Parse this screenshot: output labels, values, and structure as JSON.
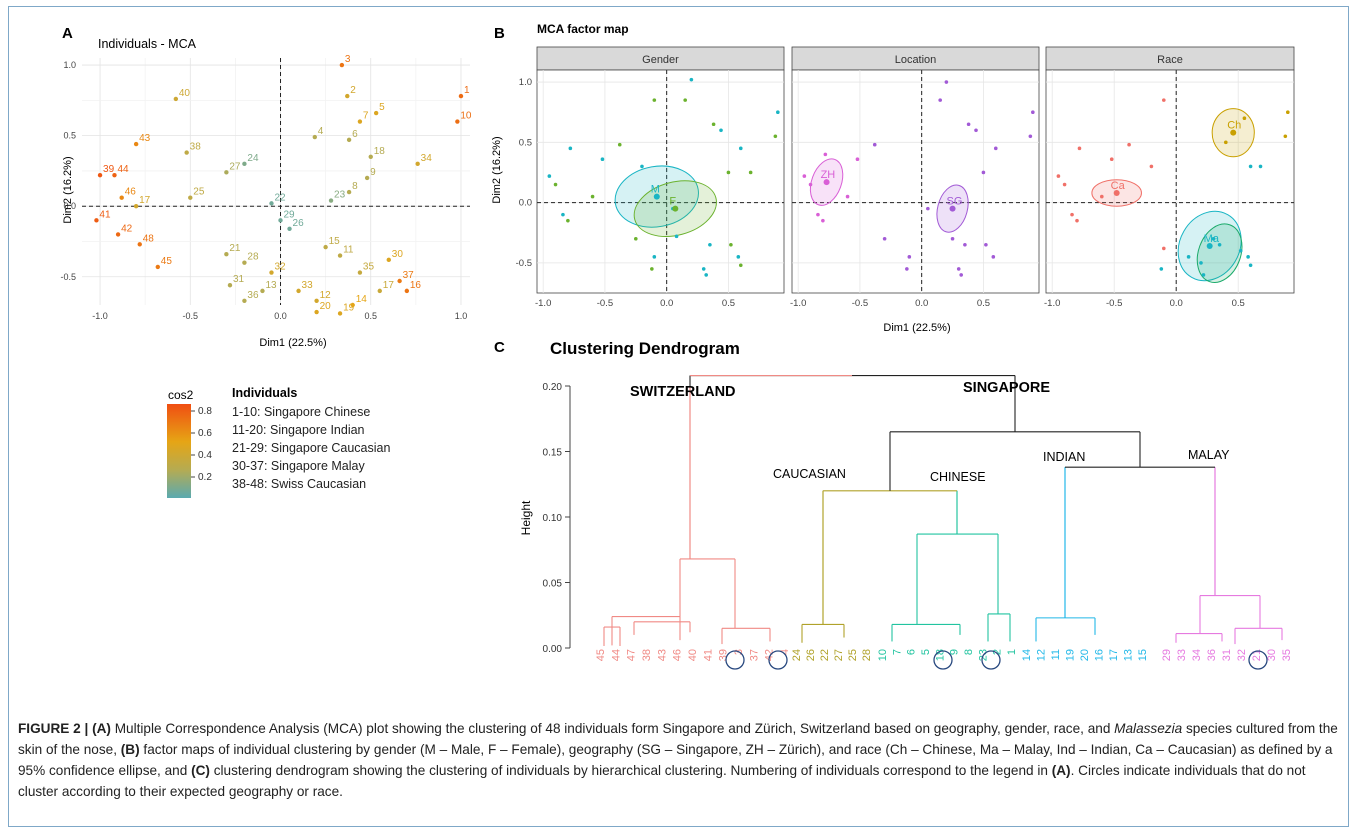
{
  "panelA": {
    "letter": "A",
    "title": "Individuals - MCA",
    "xlabel": "Dim1 (22.5%)",
    "ylabel": "Dim2 (16.2%)",
    "xticks": [
      -1.0,
      -0.5,
      0.0,
      0.5,
      1.0
    ],
    "xtick_labels": [
      "-1.0",
      "-0.5",
      "0.0",
      "0.5",
      "1.0"
    ],
    "yticks": [
      -0.5,
      0.0,
      0.5,
      1.0
    ],
    "ytick_labels": [
      "-0.5",
      "0.0",
      "0.5",
      "1.0"
    ],
    "gradient_title": "cos2",
    "gradient_ticks": [
      "0.8",
      "0.6",
      "0.4",
      "0.2"
    ],
    "legend_title": "Individuals",
    "legend_items": [
      "1-10: Singapore Chinese",
      "11-20: Singapore Indian",
      "21-29: Singapore Caucasian",
      "30-37: Singapore Malay",
      "38-48: Swiss Caucasian"
    ]
  },
  "panelB": {
    "letter": "B",
    "title": "MCA factor map",
    "facets": [
      "Gender",
      "Location",
      "Race"
    ],
    "xlabel": "Dim1 (22.5%)",
    "ylabel": "Dim2 (16.2%)",
    "xtick_labels": [
      "-1.0",
      "-0.5",
      "0.0",
      "0.5"
    ],
    "ytick_labels": [
      "1.0",
      "0.5",
      "0.0",
      "-0.5"
    ],
    "group_labels": {
      "gender": [
        "M",
        "F"
      ],
      "location": [
        "ZH",
        "SG"
      ],
      "race": [
        "Ch",
        "Ca",
        "Ma"
      ]
    }
  },
  "panelC": {
    "letter": "C",
    "title": "Clustering Dendrogram",
    "ylabel": "Height",
    "ytick_labels": [
      "0.20",
      "0.15",
      "0.10",
      "0.05",
      "0.00"
    ],
    "group_labels": [
      "SWITZERLAND",
      "SINGAPORE",
      "CAUCASIAN",
      "CHINESE",
      "INDIAN",
      "MALAY"
    ],
    "leaves": [
      {
        "group": "red",
        "labels": [
          "45",
          "44",
          "47",
          "38",
          "43",
          "46",
          "40",
          "41",
          "39",
          "3",
          "37",
          "42",
          "4"
        ]
      },
      {
        "group": "olive",
        "labels": [
          "24",
          "26",
          "22",
          "27",
          "25",
          "28"
        ]
      },
      {
        "group": "green",
        "labels": [
          "10",
          "7",
          "6",
          "5",
          "18",
          "9",
          "8",
          "23",
          "2",
          "1"
        ]
      },
      {
        "group": "blue",
        "labels": [
          "14",
          "12",
          "11",
          "19",
          "20",
          "16",
          "17",
          "13",
          "15"
        ]
      },
      {
        "group": "pink",
        "labels": [
          "29",
          "33",
          "34",
          "36",
          "31",
          "32",
          "21",
          "30",
          "35"
        ]
      }
    ]
  },
  "chart_data": [
    {
      "type": "scatter",
      "title": "Individuals - MCA",
      "xlabel": "Dim1 (22.5%)",
      "ylabel": "Dim2 (16.2%)",
      "xlim": [
        -1.1,
        1.05
      ],
      "ylim": [
        -0.7,
        1.05
      ],
      "points": [
        {
          "label": "3",
          "x": 0.34,
          "y": 1.0,
          "cos2": 0.72
        },
        {
          "label": "1",
          "x": 1.0,
          "y": 0.78,
          "cos2": 0.75
        },
        {
          "label": "10",
          "x": 0.98,
          "y": 0.6,
          "cos2": 0.74
        },
        {
          "label": "2",
          "x": 0.37,
          "y": 0.78,
          "cos2": 0.45
        },
        {
          "label": "7",
          "x": 0.44,
          "y": 0.6,
          "cos2": 0.5
        },
        {
          "label": "5",
          "x": 0.53,
          "y": 0.66,
          "cos2": 0.5
        },
        {
          "label": "40",
          "x": -0.58,
          "y": 0.76,
          "cos2": 0.42
        },
        {
          "label": "4",
          "x": 0.19,
          "y": 0.49,
          "cos2": 0.3
        },
        {
          "label": "6",
          "x": 0.38,
          "y": 0.47,
          "cos2": 0.3
        },
        {
          "label": "43",
          "x": -0.8,
          "y": 0.44,
          "cos2": 0.65
        },
        {
          "label": "38",
          "x": -0.52,
          "y": 0.38,
          "cos2": 0.35
        },
        {
          "label": "18",
          "x": 0.5,
          "y": 0.35,
          "cos2": 0.3
        },
        {
          "label": "34",
          "x": 0.76,
          "y": 0.3,
          "cos2": 0.45
        },
        {
          "label": "24",
          "x": -0.2,
          "y": 0.3,
          "cos2": 0.18
        },
        {
          "label": "27",
          "x": -0.3,
          "y": 0.24,
          "cos2": 0.28
        },
        {
          "label": "9",
          "x": 0.48,
          "y": 0.2,
          "cos2": 0.3
        },
        {
          "label": "39",
          "x": -1.0,
          "y": 0.22,
          "cos2": 0.82
        },
        {
          "label": "44",
          "x": -0.92,
          "y": 0.22,
          "cos2": 0.78
        },
        {
          "label": "8",
          "x": 0.38,
          "y": 0.1,
          "cos2": 0.3
        },
        {
          "label": "46",
          "x": -0.88,
          "y": 0.06,
          "cos2": 0.65
        },
        {
          "label": "17",
          "x": -0.8,
          "y": 0.0,
          "cos2": 0.45
        },
        {
          "label": "25",
          "x": -0.5,
          "y": 0.06,
          "cos2": 0.35
        },
        {
          "label": "23",
          "x": 0.28,
          "y": 0.04,
          "cos2": 0.2
        },
        {
          "label": "22",
          "x": -0.05,
          "y": 0.02,
          "cos2": 0.15
        },
        {
          "label": "41",
          "x": -1.02,
          "y": -0.1,
          "cos2": 0.8
        },
        {
          "label": "29",
          "x": 0.0,
          "y": -0.1,
          "cos2": 0.15
        },
        {
          "label": "26",
          "x": 0.05,
          "y": -0.16,
          "cos2": 0.15
        },
        {
          "label": "42",
          "x": -0.9,
          "y": -0.2,
          "cos2": 0.76
        },
        {
          "label": "48",
          "x": -0.78,
          "y": -0.27,
          "cos2": 0.72
        },
        {
          "label": "45",
          "x": -0.68,
          "y": -0.43,
          "cos2": 0.7
        },
        {
          "label": "21",
          "x": -0.3,
          "y": -0.34,
          "cos2": 0.3
        },
        {
          "label": "28",
          "x": -0.2,
          "y": -0.4,
          "cos2": 0.3
        },
        {
          "label": "11",
          "x": 0.33,
          "y": -0.35,
          "cos2": 0.35
        },
        {
          "label": "15",
          "x": 0.25,
          "y": -0.29,
          "cos2": 0.35
        },
        {
          "label": "30",
          "x": 0.6,
          "y": -0.38,
          "cos2": 0.5
        },
        {
          "label": "35",
          "x": 0.44,
          "y": -0.47,
          "cos2": 0.38
        },
        {
          "label": "37",
          "x": 0.66,
          "y": -0.53,
          "cos2": 0.7
        },
        {
          "label": "16",
          "x": 0.7,
          "y": -0.6,
          "cos2": 0.72
        },
        {
          "label": "17",
          "x": 0.55,
          "y": -0.6,
          "cos2": 0.4
        },
        {
          "label": "31",
          "x": -0.28,
          "y": -0.56,
          "cos2": 0.3
        },
        {
          "label": "32",
          "x": -0.05,
          "y": -0.47,
          "cos2": 0.45
        },
        {
          "label": "13",
          "x": -0.1,
          "y": -0.6,
          "cos2": 0.3
        },
        {
          "label": "33",
          "x": 0.1,
          "y": -0.6,
          "cos2": 0.45
        },
        {
          "label": "12",
          "x": 0.2,
          "y": -0.67,
          "cos2": 0.45
        },
        {
          "label": "14",
          "x": 0.4,
          "y": -0.7,
          "cos2": 0.55
        },
        {
          "label": "20",
          "x": 0.2,
          "y": -0.75,
          "cos2": 0.5
        },
        {
          "label": "19",
          "x": 0.33,
          "y": -0.76,
          "cos2": 0.5
        },
        {
          "label": "36",
          "x": -0.2,
          "y": -0.67,
          "cos2": 0.3
        }
      ]
    },
    {
      "type": "scatter",
      "title": "MCA factor map",
      "facets": [
        "Gender",
        "Location",
        "Race"
      ],
      "xlim": [
        -1.05,
        0.95
      ],
      "ylim": [
        -0.75,
        1.1
      ],
      "centroids": {
        "Gender": [
          {
            "label": "M",
            "x": -0.08,
            "y": 0.05,
            "color": "#19b5c4"
          },
          {
            "label": "F",
            "x": 0.07,
            "y": -0.05,
            "color": "#6bb22e"
          }
        ],
        "Location": [
          {
            "label": "ZH",
            "x": -0.77,
            "y": 0.17,
            "color": "#d95fd6"
          },
          {
            "label": "SG",
            "x": 0.25,
            "y": -0.05,
            "color": "#a25ad6"
          }
        ],
        "Race": [
          {
            "label": "Ch",
            "x": 0.46,
            "y": 0.58,
            "color": "#c9a000"
          },
          {
            "label": "Ca",
            "x": -0.48,
            "y": 0.08,
            "color": "#f07068"
          },
          {
            "label": "Ma",
            "x": 0.27,
            "y": -0.36,
            "color": "#19b5c4"
          }
        ]
      }
    },
    {
      "type": "dendrogram",
      "title": "Clustering Dendrogram",
      "ylabel": "Height",
      "ylim": [
        0,
        0.21
      ],
      "merge_heights": {
        "root": 0.21,
        "singapore": 0.165,
        "caucasian_chinese": 0.12,
        "chinese": 0.11,
        "indian_malay": 0.138,
        "switzerland": 0.07,
        "caucasian": 0.018,
        "chinese_sub": 0.087
      }
    }
  ],
  "caption": {
    "figure_label": "FIGURE 2 |",
    "a_label": "(A)",
    "a_text": " Multiple Correspondence Analysis (MCA) plot showing the clustering of 48 individuals form Singapore and Zürich, Switzerland based on geography, gender, race, and ",
    "species": "Malassezia",
    "a_text2": " species cultured from the skin of the nose, ",
    "b_label": "(B)",
    "b_text": " factor maps of individual clustering by gender (M – Male, F – Female), geography (SG – Singapore, ZH – Zürich), and race (Ch – Chinese, Ma – Malay, Ind – Indian, Ca – Caucasian) as defined by a 95% confidence ellipse, and ",
    "c_label": "(C)",
    "c_text": " clustering dendrogram showing the clustering of individuals by hierarchical clustering. Numbering of individuals correspond to the legend in ",
    "a_ref": "(A)",
    "c_text2": ". Circles indicate individuals that do not cluster according to their expected geography or race."
  }
}
